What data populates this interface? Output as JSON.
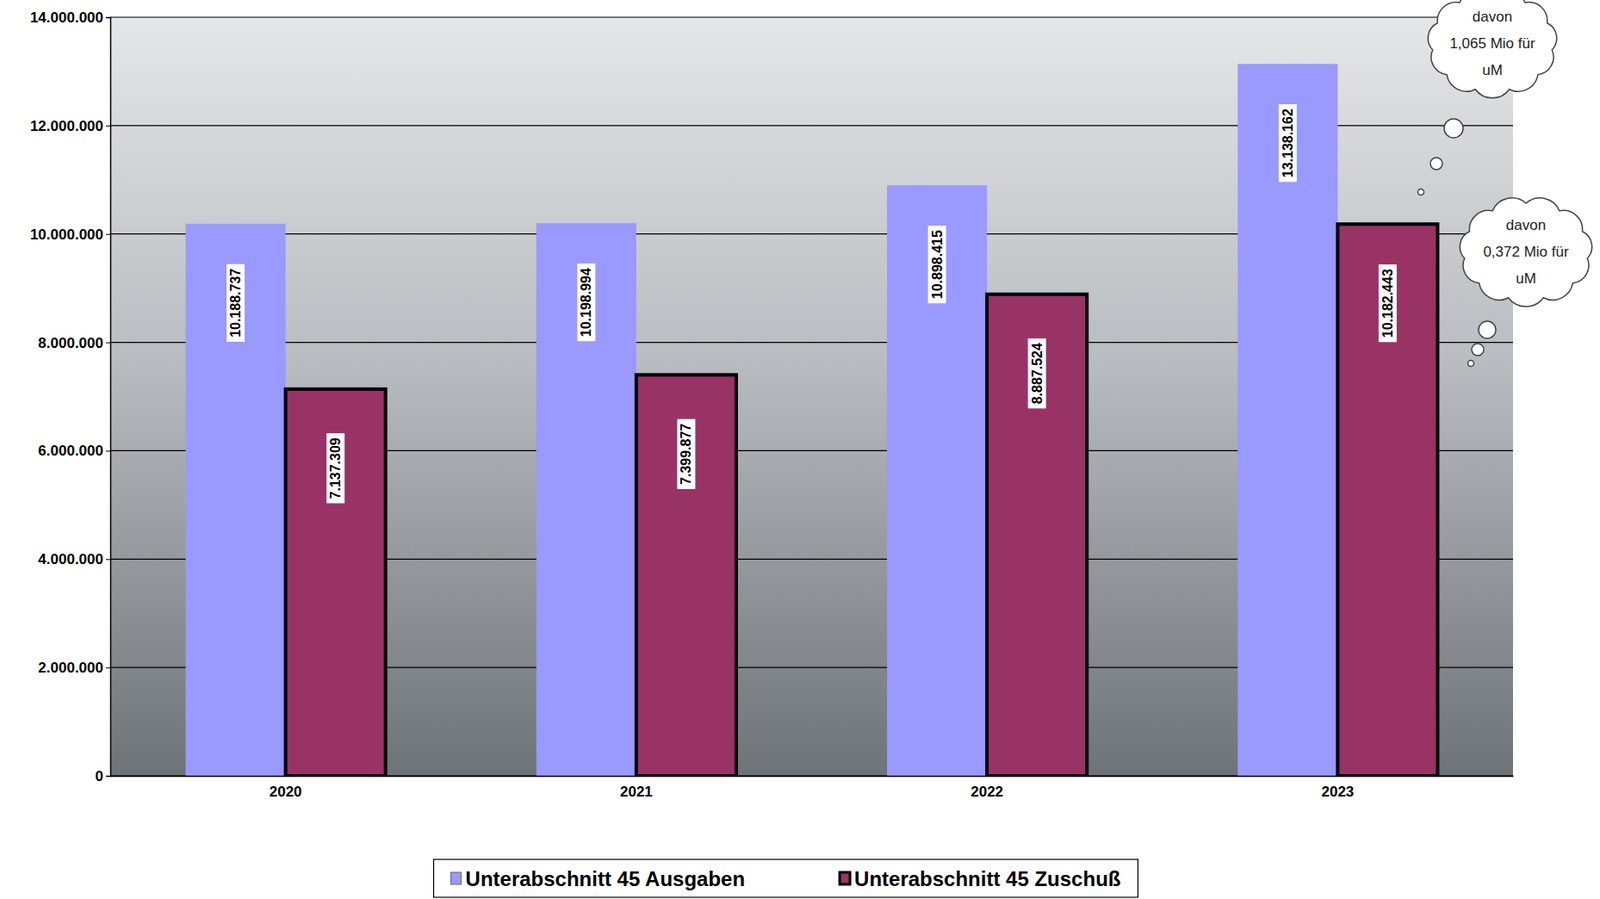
{
  "chart_data": {
    "type": "bar",
    "categories": [
      "2020",
      "2021",
      "2022",
      "2023"
    ],
    "series": [
      {
        "name": "Unterabschnitt 45 Ausgaben",
        "color": "#9999ff",
        "values": [
          10188737,
          10198994,
          10898415,
          13138162
        ],
        "value_labels": [
          "10.188.737",
          "10.198.994",
          "10.898.415",
          "13.138.162"
        ]
      },
      {
        "name": "Unterabschnitt 45 Zuschuß",
        "color": "#993366",
        "values": [
          7137309,
          7399877,
          8887524,
          10182443
        ],
        "value_labels": [
          "7.137.309",
          "7.399.877",
          "8.887.524",
          "10.182.443"
        ]
      }
    ],
    "ylim": [
      0,
      14000000
    ],
    "yticks": [
      0,
      {
        "value": 2000000,
        "label": "2.000.000"
      },
      {
        "value": 4000000,
        "label": "4.000.000"
      },
      {
        "value": 6000000,
        "label": "6.000.000"
      },
      {
        "value": 8000000,
        "label": "8.000.000"
      },
      {
        "value": 10000000,
        "label": "10.000.000"
      },
      {
        "value": 12000000,
        "label": "12.000.000"
      },
      {
        "value": 14000000,
        "label": "14.000.000"
      }
    ],
    "grid": true,
    "data_labels": true,
    "legend": "bottom",
    "annotations": [
      [
        "davon",
        "1,065 Mio für",
        "uM"
      ],
      [
        "davon",
        "0,372 Mio für",
        "uM"
      ]
    ]
  }
}
